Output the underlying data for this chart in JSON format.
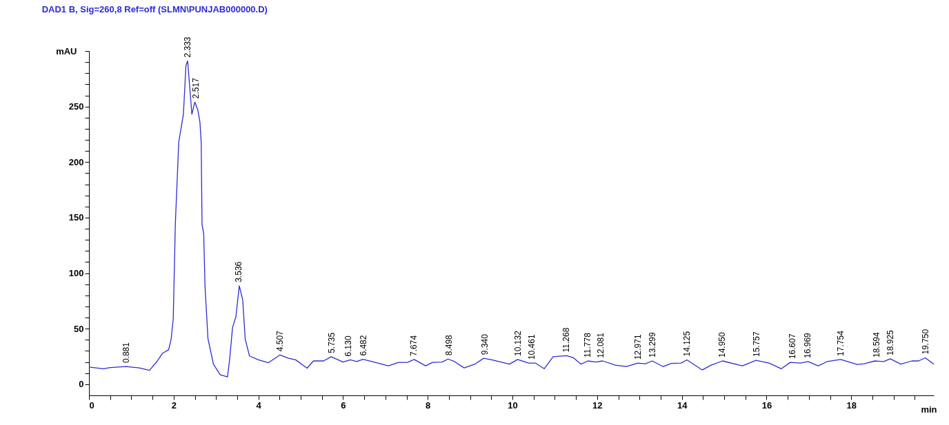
{
  "chart_data": {
    "type": "line",
    "title": "DAD1 B, Sig=260,8 Ref=off (SLMN\\PUNJAB000000.D)",
    "xlabel": "min",
    "ylabel": "mAU",
    "series": [
      {
        "color": "#2b2bd6",
        "x": [
          0,
          0.34,
          0.5,
          0.87,
          1.19,
          1.43,
          1.61,
          1.74,
          1.88,
          1.94,
          1.99,
          2.04,
          2.12,
          2.23,
          2.29,
          2.33,
          2.43,
          2.5,
          2.57,
          2.62,
          2.65,
          2.67,
          2.71,
          2.74,
          2.81,
          2.94,
          3.1,
          3.27,
          3.32,
          3.39,
          3.47,
          3.55,
          3.63,
          3.69,
          3.79,
          4.0,
          4.24,
          4.51,
          4.7,
          4.88,
          5.15,
          5.3,
          5.54,
          5.72,
          6.0,
          6.17,
          6.32,
          6.47,
          6.73,
          7.07,
          7.31,
          7.52,
          7.68,
          7.95,
          8.11,
          8.34,
          8.48,
          8.63,
          8.86,
          9.11,
          9.32,
          9.53,
          9.93,
          10.12,
          10.38,
          10.54,
          10.75,
          10.96,
          11.28,
          11.44,
          11.62,
          11.78,
          11.97,
          12.13,
          12.43,
          12.69,
          12.96,
          13.14,
          13.3,
          13.56,
          13.75,
          13.98,
          14.12,
          14.48,
          14.69,
          14.96,
          15.43,
          15.75,
          16.06,
          16.35,
          16.56,
          16.8,
          16.98,
          17.22,
          17.43,
          17.75,
          18.14,
          18.3,
          18.56,
          18.77,
          18.92,
          19.17,
          19.43,
          19.59,
          19.75,
          19.95
        ],
        "values": [
          15.5,
          14,
          15,
          16,
          14.7,
          12.6,
          20.7,
          28,
          31,
          40.5,
          59,
          145,
          218,
          243,
          287,
          291,
          243,
          254,
          247,
          236,
          218,
          144,
          135,
          88,
          41,
          18,
          8.5,
          6.6,
          21.7,
          51,
          61,
          88.7,
          76,
          40.6,
          25.5,
          22,
          19.4,
          26.4,
          23.6,
          22,
          14.5,
          21,
          21,
          24.8,
          20,
          22,
          20.4,
          22.5,
          20,
          16.6,
          19.7,
          19.7,
          22.3,
          16.6,
          19.7,
          20,
          22.7,
          20.4,
          14.7,
          18.1,
          23.4,
          21.9,
          18.1,
          22.3,
          19.1,
          19.1,
          14,
          24.8,
          25.7,
          23.8,
          18.1,
          21,
          20,
          21,
          17.2,
          15.9,
          19.1,
          18.5,
          21,
          15.9,
          18.7,
          19.1,
          21.9,
          12.9,
          17.2,
          21,
          16.6,
          21.6,
          19.1,
          14,
          19.7,
          19.1,
          20.4,
          16.6,
          20.4,
          22.3,
          17.8,
          18.5,
          21,
          20.4,
          22.9,
          18.1,
          21,
          21,
          23.8,
          18.1
        ]
      }
    ],
    "annotations": [
      {
        "text": "0.881",
        "x": 0.881,
        "y": 16
      },
      {
        "text": "2.333",
        "x": 2.333,
        "y": 291
      },
      {
        "text": "2.517",
        "x": 2.517,
        "y": 254
      },
      {
        "text": "3.536",
        "x": 3.536,
        "y": 88.7
      },
      {
        "text": "4.507",
        "x": 4.507,
        "y": 26.4
      },
      {
        "text": "5.735",
        "x": 5.735,
        "y": 24.8
      },
      {
        "text": "6.130",
        "x": 6.13,
        "y": 22
      },
      {
        "text": "6.482",
        "x": 6.482,
        "y": 22.5
      },
      {
        "text": "7.674",
        "x": 7.674,
        "y": 22.3
      },
      {
        "text": "8.498",
        "x": 8.498,
        "y": 22.7
      },
      {
        "text": "9.340",
        "x": 9.34,
        "y": 23.4
      },
      {
        "text": "10.132",
        "x": 10.132,
        "y": 22.3
      },
      {
        "text": "10.461",
        "x": 10.461,
        "y": 19.1
      },
      {
        "text": "11.268",
        "x": 11.268,
        "y": 25.7
      },
      {
        "text": "11.778",
        "x": 11.778,
        "y": 21
      },
      {
        "text": "12.081",
        "x": 12.081,
        "y": 20.5
      },
      {
        "text": "12.971",
        "x": 12.971,
        "y": 19.1
      },
      {
        "text": "13.299",
        "x": 13.299,
        "y": 21
      },
      {
        "text": "14.125",
        "x": 14.125,
        "y": 21.9
      },
      {
        "text": "14.950",
        "x": 14.95,
        "y": 21
      },
      {
        "text": "15.757",
        "x": 15.757,
        "y": 21.6
      },
      {
        "text": "16.607",
        "x": 16.607,
        "y": 19.7
      },
      {
        "text": "16.969",
        "x": 16.969,
        "y": 20.4
      },
      {
        "text": "17.754",
        "x": 17.754,
        "y": 22.3
      },
      {
        "text": "18.594",
        "x": 18.594,
        "y": 21
      },
      {
        "text": "18.925",
        "x": 18.925,
        "y": 22.9
      },
      {
        "text": "19.750",
        "x": 19.75,
        "y": 23.8
      }
    ],
    "xlim": [
      0,
      19.95
    ],
    "xticks": [
      0,
      {
        "value": 0.5,
        "label": null
      },
      {
        "value": 1,
        "label": null
      },
      {
        "value": 1.5,
        "label": null
      },
      2,
      {
        "value": 2.5,
        "label": null
      },
      {
        "value": 3,
        "label": null
      },
      {
        "value": 3.5,
        "label": null
      },
      4,
      {
        "value": 4.5,
        "label": null
      },
      {
        "value": 5,
        "label": null
      },
      {
        "value": 5.5,
        "label": null
      },
      6,
      {
        "value": 6.5,
        "label": null
      },
      {
        "value": 7,
        "label": null
      },
      {
        "value": 7.5,
        "label": null
      },
      8,
      {
        "value": 8.5,
        "label": null
      },
      {
        "value": 9,
        "label": null
      },
      {
        "value": 9.5,
        "label": null
      },
      10,
      {
        "value": 10.5,
        "label": null
      },
      {
        "value": 11,
        "label": null
      },
      {
        "value": 11.5,
        "label": null
      },
      12,
      {
        "value": 12.5,
        "label": null
      },
      {
        "value": 13,
        "label": null
      },
      {
        "value": 13.5,
        "label": null
      },
      14,
      {
        "value": 14.5,
        "label": null
      },
      {
        "value": 15,
        "label": null
      },
      {
        "value": 15.5,
        "label": null
      },
      16,
      {
        "value": 16.5,
        "label": null
      },
      {
        "value": 17,
        "label": null
      },
      {
        "value": 17.5,
        "label": null
      },
      18,
      {
        "value": 18.5,
        "label": null
      },
      {
        "value": 19,
        "label": null
      },
      {
        "value": 19.5,
        "label": null
      }
    ],
    "ylim": [
      -10,
      300
    ],
    "yticks": [
      0,
      {
        "value": 10,
        "label": null
      },
      {
        "value": 20,
        "label": null
      },
      {
        "value": 30,
        "label": null
      },
      {
        "value": 40,
        "label": null
      },
      50,
      {
        "value": 60,
        "label": null
      },
      {
        "value": 70,
        "label": null
      },
      {
        "value": 80,
        "label": null
      },
      {
        "value": 90,
        "label": null
      },
      100,
      {
        "value": 110,
        "label": null
      },
      {
        "value": 120,
        "label": null
      },
      {
        "value": 130,
        "label": null
      },
      {
        "value": 140,
        "label": null
      },
      150,
      {
        "value": 160,
        "label": null
      },
      {
        "value": 170,
        "label": null
      },
      {
        "value": 180,
        "label": null
      },
      {
        "value": 190,
        "label": null
      },
      200,
      {
        "value": 210,
        "label": null
      },
      {
        "value": 220,
        "label": null
      },
      {
        "value": 230,
        "label": null
      },
      {
        "value": 240,
        "label": null
      },
      250,
      {
        "value": 260,
        "label": null
      },
      {
        "value": 270,
        "label": null
      },
      {
        "value": 280,
        "label": null
      },
      {
        "value": 290,
        "label": null
      },
      {
        "value": 300,
        "label": null
      }
    ],
    "marker": "none",
    "line_style": "solid"
  }
}
